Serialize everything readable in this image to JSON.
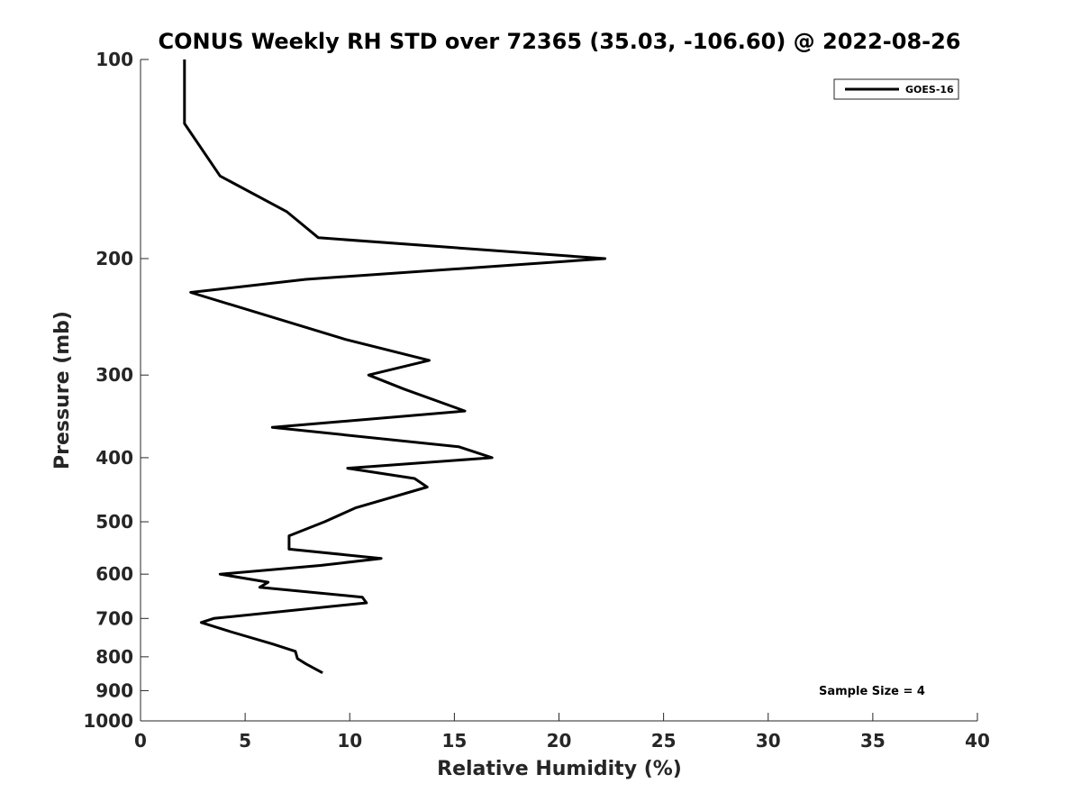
{
  "chart_data": {
    "type": "line",
    "title": "CONUS Weekly RH STD over 72365 (35.03, -106.60) @ 2022-08-26",
    "xlabel": "Relative Humidity (%)",
    "ylabel": "Pressure (mb)",
    "xlim": [
      0,
      40
    ],
    "ylim": [
      100,
      1000
    ],
    "y_scale": "log",
    "y_reversed": true,
    "grid": false,
    "legend_position": "top-right",
    "x_ticks": [
      0,
      5,
      10,
      15,
      20,
      25,
      30,
      35,
      40
    ],
    "y_ticks": [
      100,
      200,
      300,
      400,
      500,
      600,
      700,
      800,
      900,
      1000
    ],
    "series": [
      {
        "name": "GOES-16",
        "color": "#000000",
        "points": [
          {
            "x": 2.1,
            "y": 100
          },
          {
            "x": 2.1,
            "y": 125
          },
          {
            "x": 2.1,
            "y": 125
          },
          {
            "x": 3.8,
            "y": 150
          },
          {
            "x": 7.0,
            "y": 170
          },
          {
            "x": 8.5,
            "y": 186
          },
          {
            "x": 22.2,
            "y": 200
          },
          {
            "x": 7.9,
            "y": 215
          },
          {
            "x": 2.4,
            "y": 225
          },
          {
            "x": 9.8,
            "y": 265
          },
          {
            "x": 13.8,
            "y": 285
          },
          {
            "x": 10.9,
            "y": 300
          },
          {
            "x": 12.6,
            "y": 315
          },
          {
            "x": 15.5,
            "y": 340
          },
          {
            "x": 6.3,
            "y": 360
          },
          {
            "x": 15.2,
            "y": 385
          },
          {
            "x": 16.8,
            "y": 400
          },
          {
            "x": 9.9,
            "y": 415
          },
          {
            "x": 13.1,
            "y": 430
          },
          {
            "x": 13.7,
            "y": 443
          },
          {
            "x": 10.3,
            "y": 476
          },
          {
            "x": 8.8,
            "y": 500
          },
          {
            "x": 7.1,
            "y": 525
          },
          {
            "x": 7.1,
            "y": 550
          },
          {
            "x": 11.5,
            "y": 568
          },
          {
            "x": 8.6,
            "y": 582
          },
          {
            "x": 3.8,
            "y": 600
          },
          {
            "x": 6.1,
            "y": 617
          },
          {
            "x": 5.7,
            "y": 628
          },
          {
            "x": 10.6,
            "y": 650
          },
          {
            "x": 10.8,
            "y": 663
          },
          {
            "x": 3.5,
            "y": 700
          },
          {
            "x": 2.9,
            "y": 710
          },
          {
            "x": 4.3,
            "y": 733
          },
          {
            "x": 6.3,
            "y": 765
          },
          {
            "x": 7.4,
            "y": 785
          },
          {
            "x": 7.5,
            "y": 805
          },
          {
            "x": 7.9,
            "y": 820
          },
          {
            "x": 8.7,
            "y": 846
          }
        ]
      }
    ],
    "annotations": [
      "Sample Size = 4"
    ]
  }
}
